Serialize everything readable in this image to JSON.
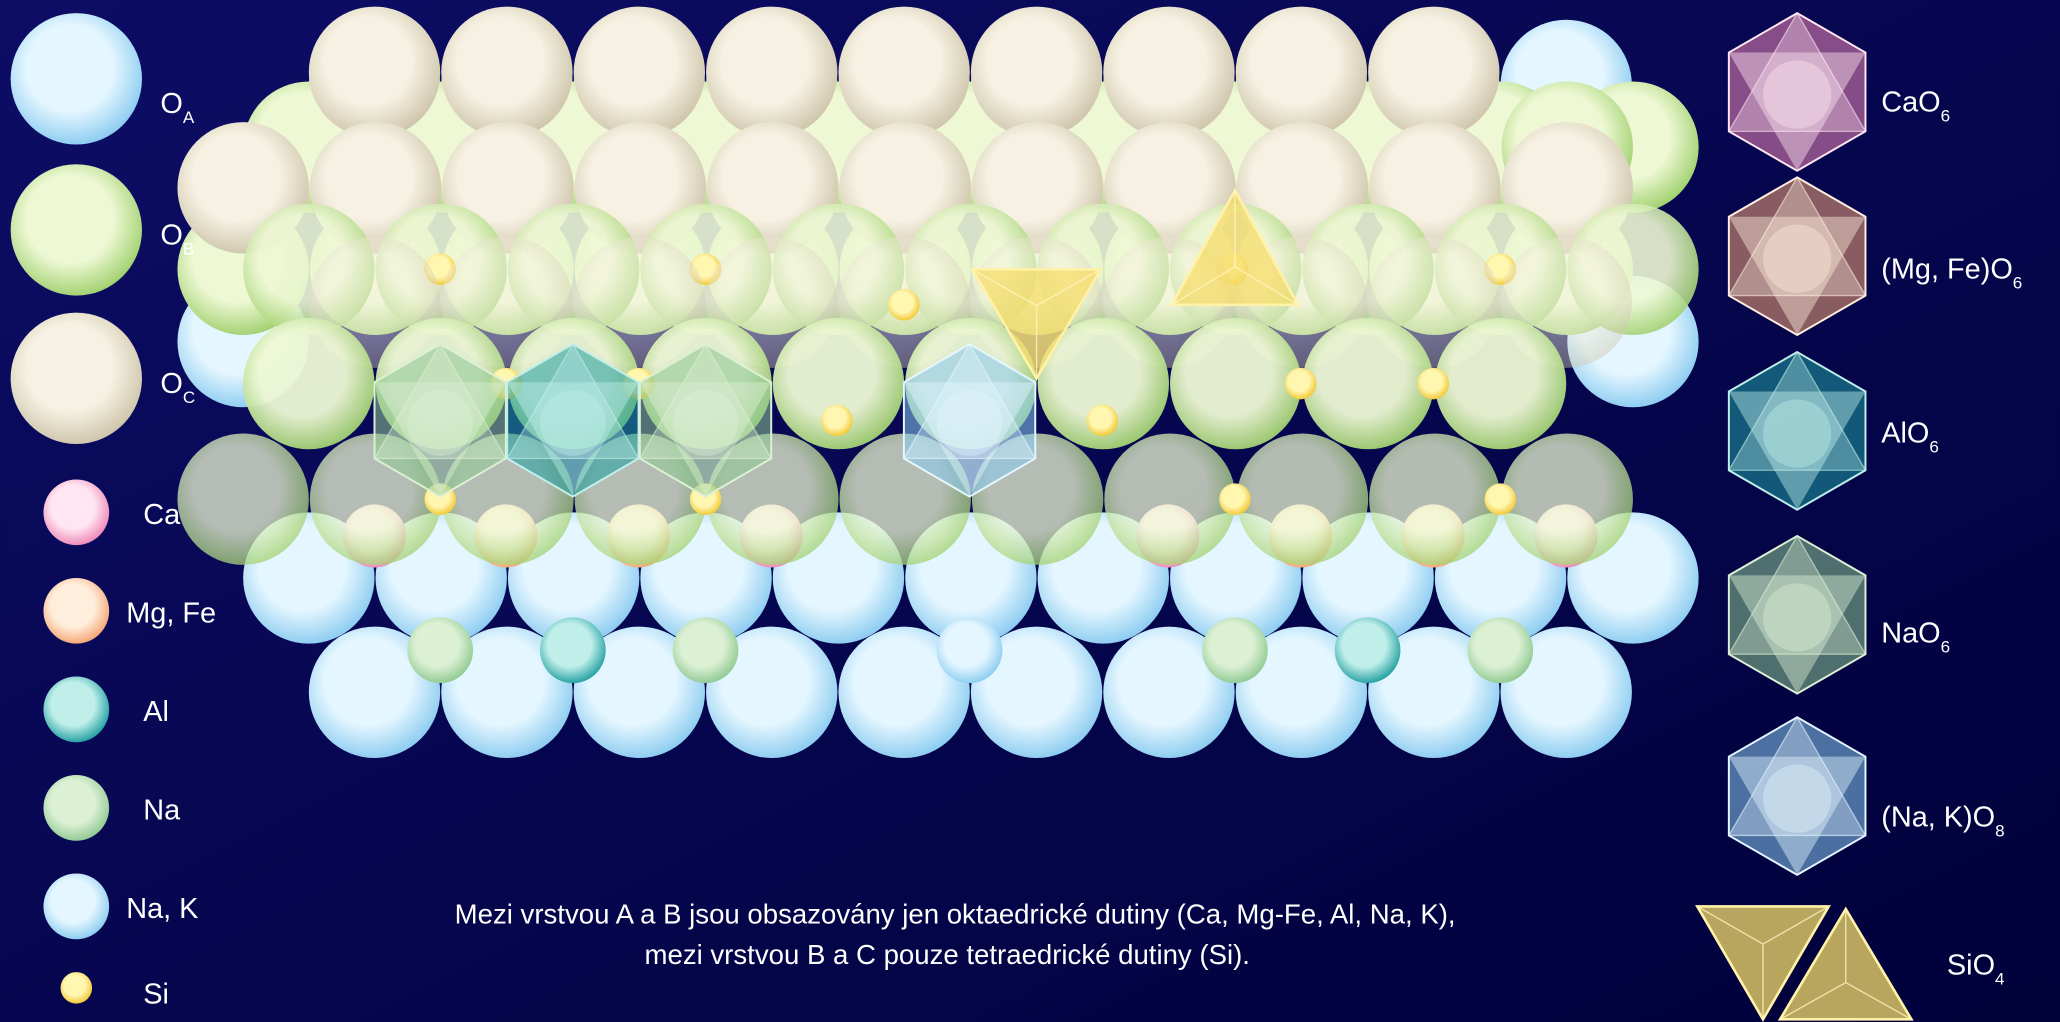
{
  "legend_left": [
    {
      "symbol": "O",
      "subscript": "A"
    },
    {
      "symbol": "O",
      "subscript": "B"
    },
    {
      "symbol": "O",
      "subscript": "C"
    }
  ],
  "ions": [
    "Ca",
    "Mg, Fe",
    "Al",
    "Na",
    "Na, K",
    "Si"
  ],
  "legend_right": [
    {
      "formula": "CaO",
      "subscript": "6"
    },
    {
      "formula": "(Mg, Fe)O",
      "subscript": "6"
    },
    {
      "formula": "AlO",
      "subscript": "6"
    },
    {
      "formula": "NaO",
      "subscript": "6"
    },
    {
      "formula": "(Na, K)O",
      "subscript": "8"
    },
    {
      "formula": "SiO",
      "subscript": "4"
    }
  ],
  "caption": [
    "Mezi vrstvou A a B jsou obsazovány jen oktaedrické dutiny (Ca, Mg-Fe, Al, Na, K),",
    "mezi vrstvou B a C pouze tetraedrické dutiny (Si)."
  ]
}
